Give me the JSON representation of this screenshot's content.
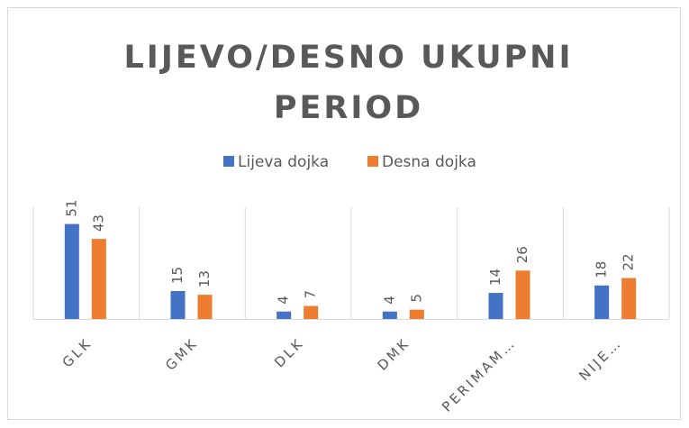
{
  "chart_data": {
    "type": "bar",
    "title": "LIJEVO/DESNO UKUPNI PERIOD",
    "categories": [
      "GLK",
      "GMK",
      "DLK",
      "DMK",
      "PERIMAM…",
      "NIJE…"
    ],
    "series": [
      {
        "name": "Lijeva dojka",
        "color": "#4472c4",
        "values": [
          51,
          15,
          4,
          4,
          14,
          18
        ]
      },
      {
        "name": "Desna dojka",
        "color": "#ed7d31",
        "values": [
          43,
          13,
          7,
          5,
          26,
          22
        ]
      }
    ],
    "ylim": [
      0,
      60
    ],
    "legend": "top"
  }
}
